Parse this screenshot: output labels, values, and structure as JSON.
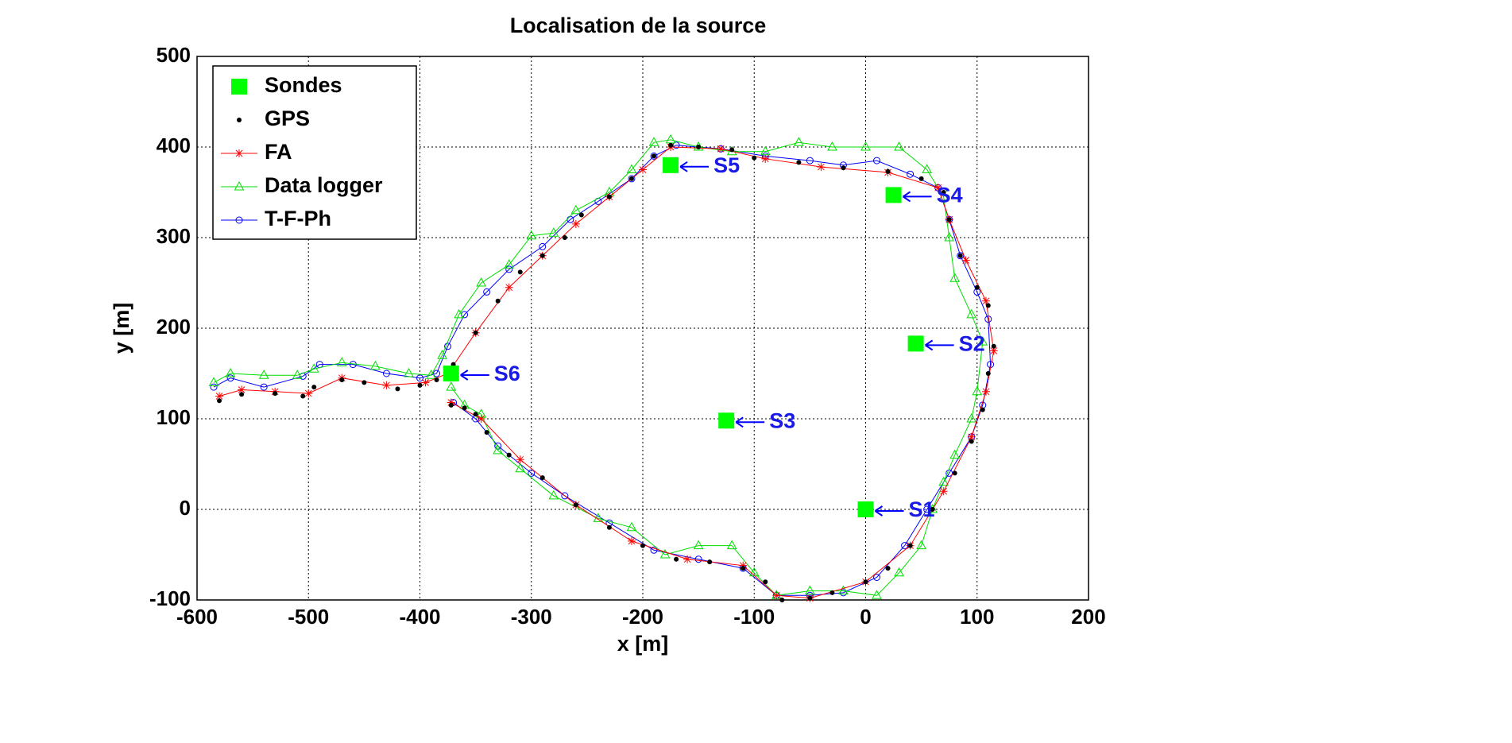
{
  "chart_data": {
    "type": "scatter",
    "title": "Localisation de la source",
    "x_label": "x [m]",
    "y_label": "y [m]",
    "xlim": [
      -600,
      200
    ],
    "ylim": [
      -100,
      500
    ],
    "xticks": [
      -600,
      -500,
      -400,
      -300,
      -200,
      -100,
      0,
      100,
      200
    ],
    "yticks": [
      -100,
      0,
      100,
      200,
      300,
      400,
      500
    ],
    "grid": true,
    "legend": "upper left",
    "series": [
      {
        "name": "Sondes",
        "color": "#00ff00",
        "marker": "square",
        "line": false,
        "x": [
          0,
          45,
          -125,
          25,
          -175,
          -372
        ],
        "values": [
          0,
          183,
          98,
          347,
          380,
          150
        ]
      },
      {
        "name": "GPS",
        "color": "#000000",
        "marker": "dot",
        "line": false,
        "x": [
          -580,
          -560,
          -530,
          -505,
          -495,
          -470,
          -450,
          -420,
          -400,
          -385,
          -370,
          -350,
          -330,
          -310,
          -290,
          -270,
          -255,
          -230,
          -210,
          -190,
          -175,
          -150,
          -120,
          -100,
          -60,
          -20,
          20,
          50,
          70,
          75,
          85,
          100,
          110,
          115,
          110,
          105,
          95,
          80,
          60,
          40,
          20,
          0,
          -30,
          -50,
          -75,
          -90,
          -110,
          -140,
          -170,
          -200,
          -230,
          -260,
          -290,
          -320,
          -340,
          -350,
          -360,
          -372
        ],
        "values": [
          120,
          127,
          128,
          125,
          135,
          143,
          140,
          133,
          137,
          143,
          160,
          195,
          230,
          262,
          280,
          300,
          325,
          345,
          365,
          390,
          402,
          400,
          397,
          388,
          383,
          377,
          373,
          365,
          350,
          320,
          280,
          245,
          225,
          180,
          150,
          110,
          75,
          40,
          0,
          -40,
          -65,
          -80,
          -92,
          -98,
          -100,
          -80,
          -65,
          -58,
          -55,
          -40,
          -20,
          5,
          35,
          60,
          85,
          105,
          112,
          115
        ]
      },
      {
        "name": "FA",
        "color": "#ff0000",
        "marker": "star",
        "line": true,
        "x": [
          -580,
          -560,
          -530,
          -500,
          -470,
          -430,
          -395,
          -375,
          -350,
          -320,
          -290,
          -260,
          -230,
          -200,
          -175,
          -130,
          -90,
          -40,
          20,
          65,
          75,
          90,
          108,
          115,
          108,
          95,
          70,
          40,
          0,
          -50,
          -80,
          -110,
          -160,
          -210,
          -260,
          -310,
          -345,
          -372
        ],
        "values": [
          125,
          132,
          130,
          128,
          145,
          137,
          140,
          150,
          195,
          245,
          280,
          315,
          345,
          375,
          400,
          398,
          387,
          378,
          372,
          355,
          320,
          275,
          230,
          175,
          130,
          80,
          20,
          -40,
          -80,
          -98,
          -95,
          -62,
          -55,
          -35,
          5,
          55,
          100,
          118
        ]
      },
      {
        "name": "Data logger",
        "color": "#00dd00",
        "marker": "triangle",
        "line": true,
        "x": [
          -585,
          -570,
          -540,
          -510,
          -495,
          -470,
          -440,
          -410,
          -390,
          -380,
          -365,
          -345,
          -320,
          -300,
          -280,
          -260,
          -230,
          -210,
          -190,
          -175,
          -150,
          -120,
          -90,
          -60,
          -30,
          0,
          30,
          55,
          70,
          75,
          80,
          95,
          105,
          100,
          95,
          80,
          70,
          60,
          50,
          30,
          10,
          -20,
          -50,
          -80,
          -100,
          -120,
          -150,
          -180,
          -210,
          -240,
          -280,
          -310,
          -330,
          -345,
          -360,
          -372
        ],
        "values": [
          140,
          150,
          148,
          148,
          155,
          162,
          158,
          150,
          148,
          170,
          215,
          250,
          270,
          302,
          305,
          330,
          350,
          375,
          405,
          408,
          400,
          395,
          395,
          405,
          400,
          400,
          400,
          375,
          345,
          300,
          255,
          215,
          185,
          130,
          100,
          60,
          30,
          0,
          -40,
          -70,
          -95,
          -90,
          -90,
          -95,
          -70,
          -40,
          -40,
          -50,
          -20,
          -10,
          15,
          45,
          65,
          105,
          115,
          135
        ]
      },
      {
        "name": "T-F-Ph",
        "color": "#0000ff",
        "marker": "circle",
        "line": true,
        "x": [
          -585,
          -570,
          -540,
          -505,
          -490,
          -460,
          -430,
          -400,
          -385,
          -375,
          -360,
          -340,
          -320,
          -290,
          -265,
          -240,
          -210,
          -190,
          -170,
          -130,
          -90,
          -50,
          -20,
          10,
          40,
          65,
          75,
          85,
          100,
          110,
          112,
          105,
          95,
          75,
          55,
          35,
          10,
          -20,
          -50,
          -80,
          -110,
          -150,
          -190,
          -230,
          -270,
          -300,
          -330,
          -350,
          -370
        ],
        "values": [
          135,
          145,
          135,
          147,
          160,
          160,
          150,
          145,
          150,
          180,
          215,
          240,
          265,
          290,
          320,
          340,
          365,
          390,
          402,
          398,
          390,
          385,
          380,
          385,
          370,
          355,
          320,
          280,
          240,
          210,
          160,
          115,
          80,
          40,
          0,
          -40,
          -75,
          -92,
          -95,
          -95,
          -65,
          -55,
          -45,
          -15,
          15,
          40,
          70,
          100,
          118
        ]
      }
    ],
    "annotations": [
      "S1",
      "S2",
      "S3",
      "S4",
      "S5",
      "S6"
    ]
  }
}
